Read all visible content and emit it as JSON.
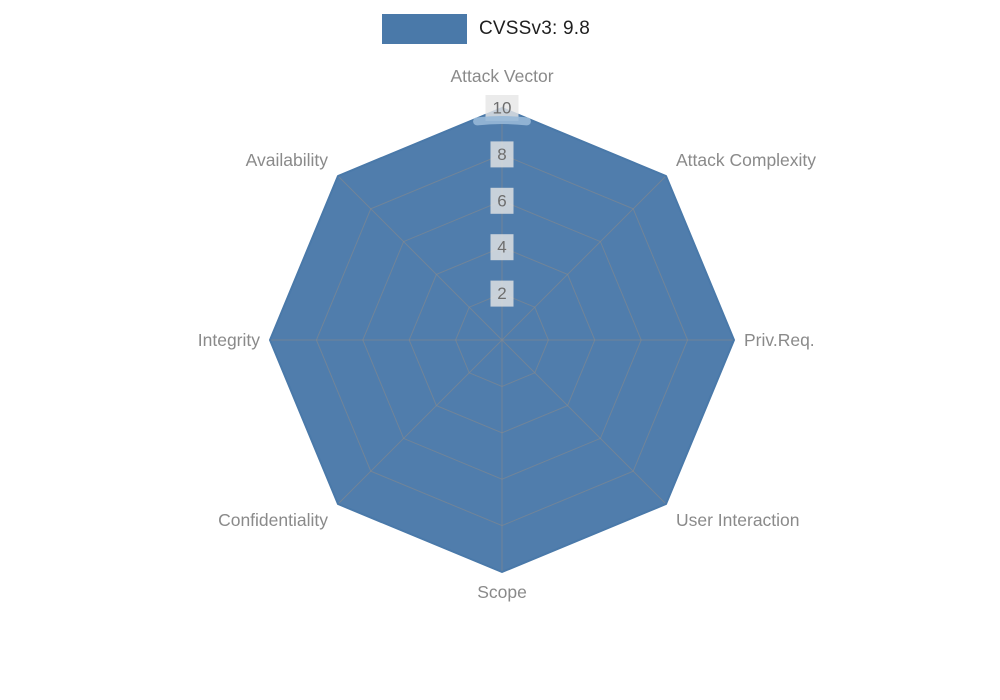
{
  "legend": {
    "label": "CVSSv3: 9.8"
  },
  "chart_data": {
    "type": "radar",
    "title": "",
    "categories": [
      "Attack Vector",
      "Attack Complexity",
      "Priv.Req.",
      "User Interaction",
      "Scope",
      "Confidentiality",
      "Integrity",
      "Availability"
    ],
    "series": [
      {
        "name": "CVSSv3: 9.8",
        "values": [
          10,
          10,
          10,
          10,
          10,
          10,
          10,
          10
        ]
      }
    ],
    "ticks": [
      2,
      4,
      6,
      8,
      10
    ],
    "range": [
      0,
      10
    ],
    "grid": true,
    "legend_position": "top",
    "colors": {
      "series_fill": "#4a79a9",
      "series_line": "#4a79a9",
      "highlight": "#97b8d7",
      "grid": "#8a8a8a",
      "tick_text": "#6e6e6e",
      "tick_box": "#e6e6e6",
      "axis_label": "#8a8a8a",
      "legend_text": "#1f1f1f"
    }
  }
}
